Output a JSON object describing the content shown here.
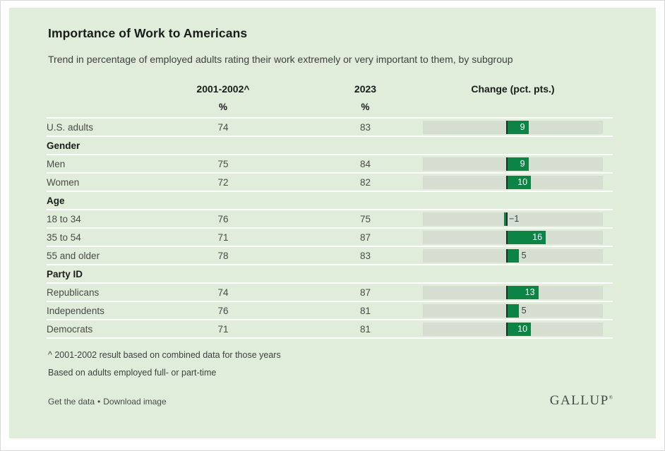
{
  "header": {
    "title": "Importance of Work to Americans",
    "subtitle": "Trend in percentage of employed adults rating their work extremely or very important to them, by subgroup"
  },
  "table_headers": {
    "col_2001": "2001-2002^",
    "col_2023": "2023",
    "col_change": "Change (pct. pts.)",
    "percent_symbol": "%"
  },
  "chart_data": {
    "type": "bar",
    "title": "Importance of Work to Americans",
    "subtitle": "Trend in percentage of employed adults rating their work extremely or very important to them, by subgroup",
    "columns": [
      "2001-2002^",
      "2023",
      "Change (pct. pts.)"
    ],
    "rows": [
      {
        "type": "data",
        "label": "U.S. adults",
        "v2001": 74,
        "v2023": 83,
        "change": 9
      },
      {
        "type": "section",
        "label": "Gender"
      },
      {
        "type": "data",
        "label": "Men",
        "v2001": 75,
        "v2023": 84,
        "change": 9
      },
      {
        "type": "data",
        "label": "Women",
        "v2001": 72,
        "v2023": 82,
        "change": 10
      },
      {
        "type": "section",
        "label": "Age"
      },
      {
        "type": "data",
        "label": "18 to 34",
        "v2001": 76,
        "v2023": 75,
        "change": -1
      },
      {
        "type": "data",
        "label": "35 to 54",
        "v2001": 71,
        "v2023": 87,
        "change": 16
      },
      {
        "type": "data",
        "label": "55 and older",
        "v2001": 78,
        "v2023": 83,
        "change": 5
      },
      {
        "type": "section",
        "label": "Party ID"
      },
      {
        "type": "data",
        "label": "Republicans",
        "v2001": 74,
        "v2023": 87,
        "change": 13
      },
      {
        "type": "data",
        "label": "Independents",
        "v2001": 76,
        "v2023": 81,
        "change": 5
      },
      {
        "type": "data",
        "label": "Democrats",
        "v2001": 71,
        "v2023": 81,
        "change": 10
      }
    ],
    "change_axis": {
      "zero_pct": 46.3,
      "pct_per_point": 1.373,
      "inside_label_min": 9
    },
    "colors": {
      "bar_green": "#0b8446",
      "track": "#d6ddd1",
      "card_bg": "#e0edda",
      "zero_line": "#23282a"
    },
    "legend": "none",
    "grid": "off"
  },
  "footnotes": [
    "^ 2001-2002 result based on combined data for those years",
    "Based on adults employed full- or part-time"
  ],
  "footer": {
    "links": [
      {
        "label": "Get the data"
      },
      {
        "label": "Download image"
      }
    ],
    "separator": "•",
    "brand": "GALLUP",
    "brand_mark": "®"
  }
}
